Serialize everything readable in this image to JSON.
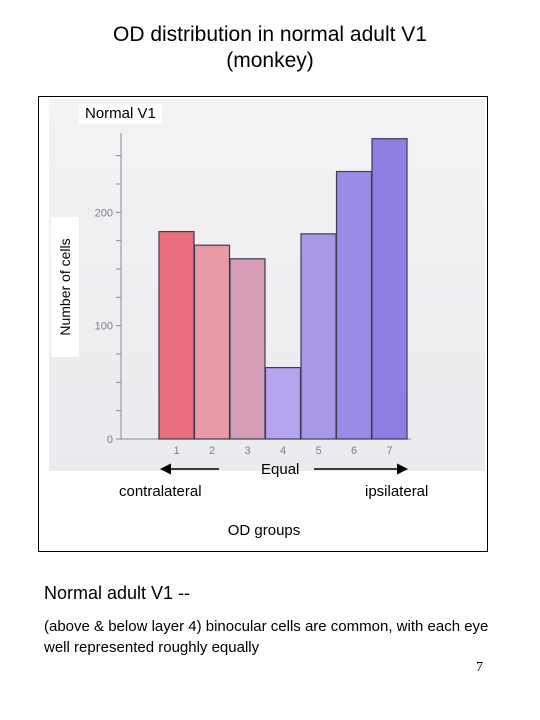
{
  "slide": {
    "title_line1": "OD distribution in normal adult V1",
    "title_line2": "(monkey)",
    "caption_heading": "Normal adult V1 --",
    "caption_body": "(above & below layer 4) binocular cells are common, with each eye well represented roughly equally",
    "page_number": "7"
  },
  "figure": {
    "panel_label": "Normal V1",
    "left_arrow_label": "contralateral",
    "center_label": "Equal",
    "right_arrow_label": "ipsilateral"
  },
  "chart_data": {
    "type": "bar",
    "categories": [
      "1",
      "2",
      "3",
      "4",
      "5",
      "6",
      "7"
    ],
    "values": [
      183,
      171,
      159,
      63,
      181,
      236,
      265
    ],
    "ylabel": "Number of cells",
    "xlabel": "OD groups",
    "yticks": [
      0,
      100,
      200
    ],
    "ylim": [
      0,
      270
    ],
    "bar_colors": [
      "#ea6f7d",
      "#e89ba6",
      "#d59cb5",
      "#b7a4ef",
      "#a898e6",
      "#9a8ce6",
      "#8d7fe3"
    ],
    "grid": false
  }
}
